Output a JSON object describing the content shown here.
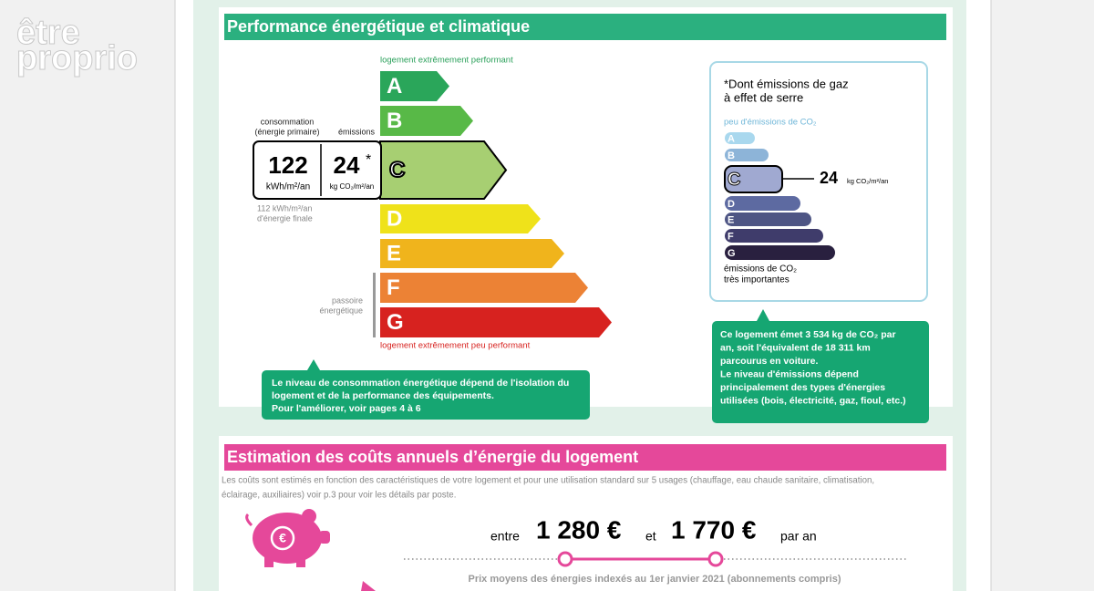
{
  "logo": [
    "être",
    "proprio"
  ],
  "performance": {
    "title": "Performance énergétique et climatique",
    "top_label": "logement extrêmement performant",
    "bottom_label": "logement extrêmement peu performant",
    "energy_classes": [
      "A",
      "B",
      "C",
      "D",
      "E",
      "F",
      "G"
    ],
    "consumption_label": [
      "consommation",
      "(énergie primaire)"
    ],
    "emissions_label": "émissions",
    "consumption_value": "122",
    "consumption_unit": "kWh/m²/an",
    "emissions_value": "24",
    "emissions_star": "*",
    "emissions_unit": "kg CO₂/m²/an",
    "final_energy": [
      "112 kWh/m³/an",
      "d'énergie finale"
    ],
    "passoire": [
      "passoire",
      "énergétique"
    ],
    "callout": [
      "Le niveau de consommation énergétique dépend de l'isolation du",
      "logement et de la performance des équipements.",
      "Pour l'améliorer, voir pages 4 à 6"
    ]
  },
  "ghg": {
    "title": [
      "*Dont émissions de gaz",
      "à effet de serre"
    ],
    "top_label": "peu d'émissions de CO₂",
    "classes": [
      "A",
      "B",
      "C",
      "D",
      "E",
      "F",
      "G"
    ],
    "value": "24",
    "unit": "kg CO₂/m²/an",
    "bottom_label": [
      "émissions de CO₂",
      "très importantes"
    ],
    "callout": [
      "Ce logement émet 3 534 kg de CO₂ par",
      "an, soit l'équivalent de 18 311 km",
      "parcourus en voiture.",
      "Le niveau d'émissions dépend",
      "principalement des types d'énergies",
      "utilisées (bois, électricité, gaz, fioul, etc.)"
    ]
  },
  "costs": {
    "title": "Estimation des coûts annuels d’énergie du logement",
    "description": [
      "Les coûts sont estimés en fonction des caractéristiques de votre logement et pour une utilisation standard sur 5 usages (chauffage, eau chaude sanitaire, climatisation,",
      "éclairage, auxiliaires) voir p.3 pour voir les détails par poste."
    ],
    "between": "entre",
    "low": "1 280 €",
    "and": "et",
    "high": "1 770 €",
    "per_year": "par an",
    "note": "Prix moyens des énergies indexés au  1er janvier 2021 (abonnements compris)"
  }
}
